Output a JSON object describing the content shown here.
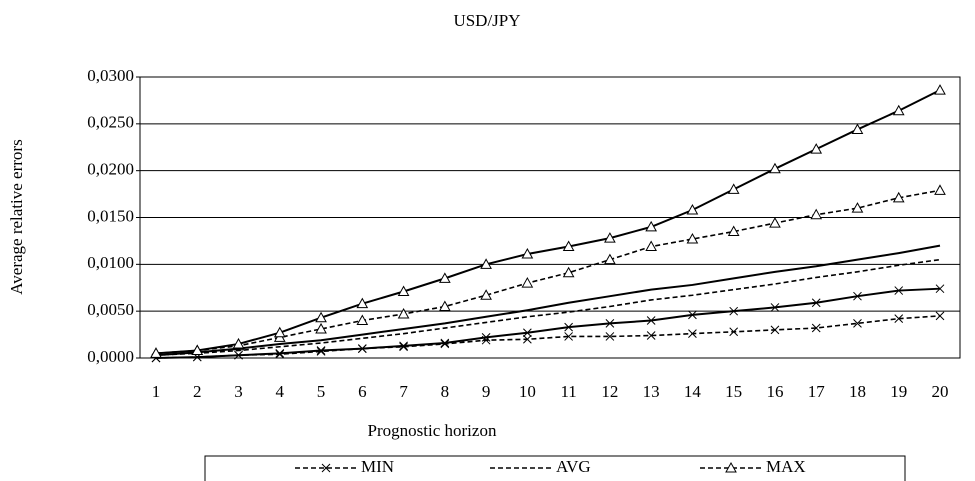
{
  "chart_data": {
    "type": "line",
    "title": "USD/JPY",
    "x_label": "Prognostic horizon",
    "y_label": "Average relative errors",
    "categories": [
      "1",
      "2",
      "3",
      "4",
      "5",
      "6",
      "7",
      "8",
      "9",
      "10",
      "11",
      "12",
      "13",
      "14",
      "15",
      "16",
      "17",
      "18",
      "19",
      "20"
    ],
    "ylim": [
      0,
      0.03
    ],
    "yticks": [
      {
        "value": 0,
        "label": "0,0000"
      },
      {
        "value": 0.005,
        "label": "0,0050"
      },
      {
        "value": 0.01,
        "label": "0,0100"
      },
      {
        "value": 0.015,
        "label": "0,0150"
      },
      {
        "value": 0.02,
        "label": "0,0200"
      },
      {
        "value": 0.025,
        "label": "0,0250"
      },
      {
        "value": 0.03,
        "label": "0,0300"
      }
    ],
    "grid": true,
    "series": [
      {
        "name": "MIN",
        "color": "#000000",
        "style": "dashed",
        "marker": "x",
        "values": [
          0.0,
          0.0001,
          0.0003,
          0.0004,
          0.0007,
          0.001,
          0.0012,
          0.0015,
          0.0019,
          0.002,
          0.0023,
          0.0023,
          0.0024,
          0.0026,
          0.0028,
          0.003,
          0.0032,
          0.0037,
          0.0042,
          0.0045
        ]
      },
      {
        "name": "AVG",
        "color": "#000000",
        "style": "dashed",
        "marker": "none",
        "values": [
          0.0003,
          0.0005,
          0.0008,
          0.0012,
          0.0016,
          0.0021,
          0.0026,
          0.0032,
          0.0038,
          0.0044,
          0.0049,
          0.0055,
          0.0062,
          0.0067,
          0.0073,
          0.0079,
          0.0086,
          0.0092,
          0.0099,
          0.0105
        ]
      },
      {
        "name": "MAX",
        "color": "#000000",
        "style": "dashed",
        "marker": "triangle",
        "values": [
          0.0005,
          0.0008,
          0.0013,
          0.0022,
          0.0031,
          0.004,
          0.0047,
          0.0055,
          0.0067,
          0.008,
          0.0091,
          0.0105,
          0.0119,
          0.0127,
          0.0135,
          0.0144,
          0.0153,
          0.016,
          0.0171,
          0.0179
        ]
      },
      {
        "color": "#000000",
        "style": "solid",
        "marker": "x",
        "values": [
          0.0,
          0.0001,
          0.0003,
          0.0005,
          0.0008,
          0.001,
          0.0013,
          0.0016,
          0.0022,
          0.0027,
          0.0033,
          0.0037,
          0.004,
          0.0046,
          0.005,
          0.0054,
          0.0059,
          0.0066,
          0.0072,
          0.0074
        ]
      },
      {
        "color": "#000000",
        "style": "solid",
        "marker": "none",
        "values": [
          0.0003,
          0.0006,
          0.001,
          0.0015,
          0.0019,
          0.0025,
          0.0031,
          0.0037,
          0.0044,
          0.0051,
          0.0059,
          0.0066,
          0.0073,
          0.0078,
          0.0085,
          0.0092,
          0.0098,
          0.0105,
          0.0112,
          0.012
        ]
      },
      {
        "color": "#000000",
        "style": "solid",
        "marker": "triangle",
        "values": [
          0.0005,
          0.0008,
          0.0015,
          0.0027,
          0.0043,
          0.0058,
          0.0071,
          0.0085,
          0.01,
          0.0111,
          0.0119,
          0.0128,
          0.014,
          0.0158,
          0.018,
          0.0202,
          0.0223,
          0.0244,
          0.0264,
          0.0286
        ]
      }
    ]
  }
}
